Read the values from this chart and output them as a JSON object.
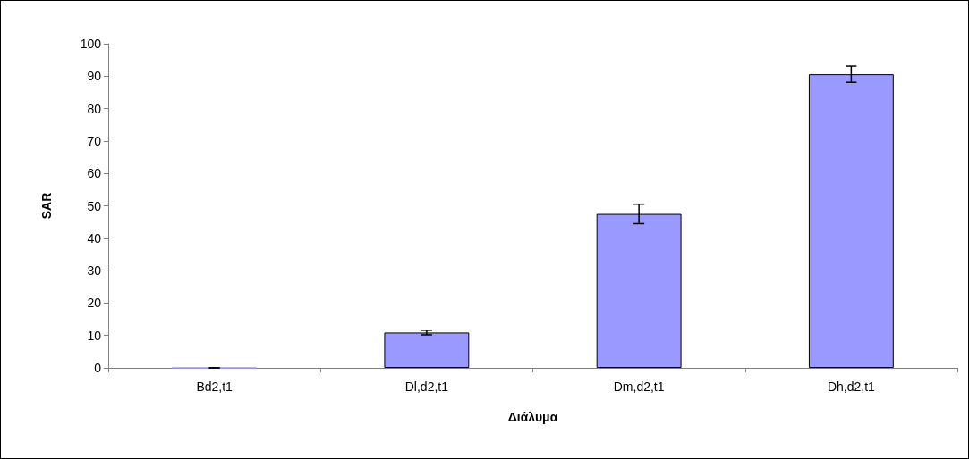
{
  "chart_data": {
    "type": "bar",
    "xlabel": "Διάλυμα",
    "ylabel": "SAR",
    "categories": [
      "Bd2,t1",
      "Dl,d2,t1",
      "Dm,d2,t1",
      "Dh,d2,t1"
    ],
    "values": [
      0,
      10.9,
      47.5,
      90.6
    ],
    "errors": [
      0,
      0.7,
      3,
      2.5
    ],
    "color": "#9999ff",
    "ylim": [
      0,
      100
    ],
    "yticks": [
      0,
      10,
      20,
      30,
      40,
      50,
      60,
      70,
      80,
      90,
      100
    ],
    "grid": false
  }
}
